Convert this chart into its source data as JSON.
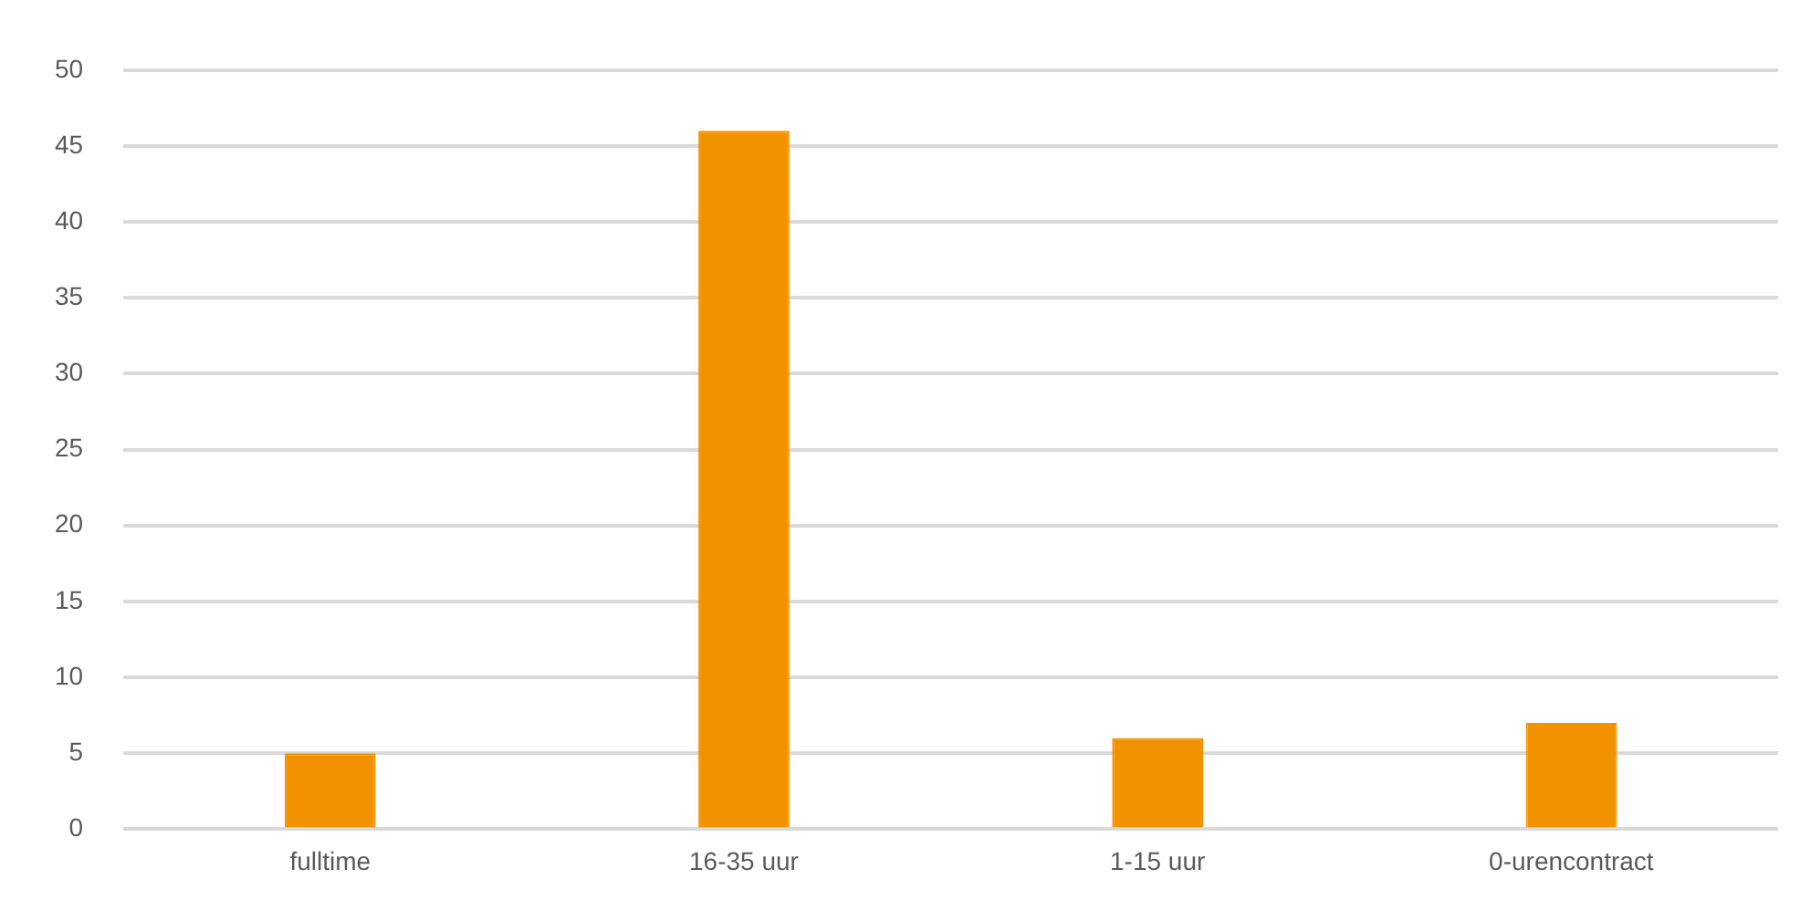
{
  "chart_data": {
    "type": "bar",
    "categories": [
      "fulltime",
      "16-35 uur",
      "1-15 uur",
      "0-urencontract"
    ],
    "values": [
      5,
      46,
      6,
      7
    ],
    "color": "#f39200",
    "ylim": [
      0,
      50
    ],
    "yticks": [
      0,
      5,
      10,
      15,
      20,
      25,
      30,
      35,
      40,
      45,
      50
    ],
    "grid": "y",
    "legend": false
  }
}
